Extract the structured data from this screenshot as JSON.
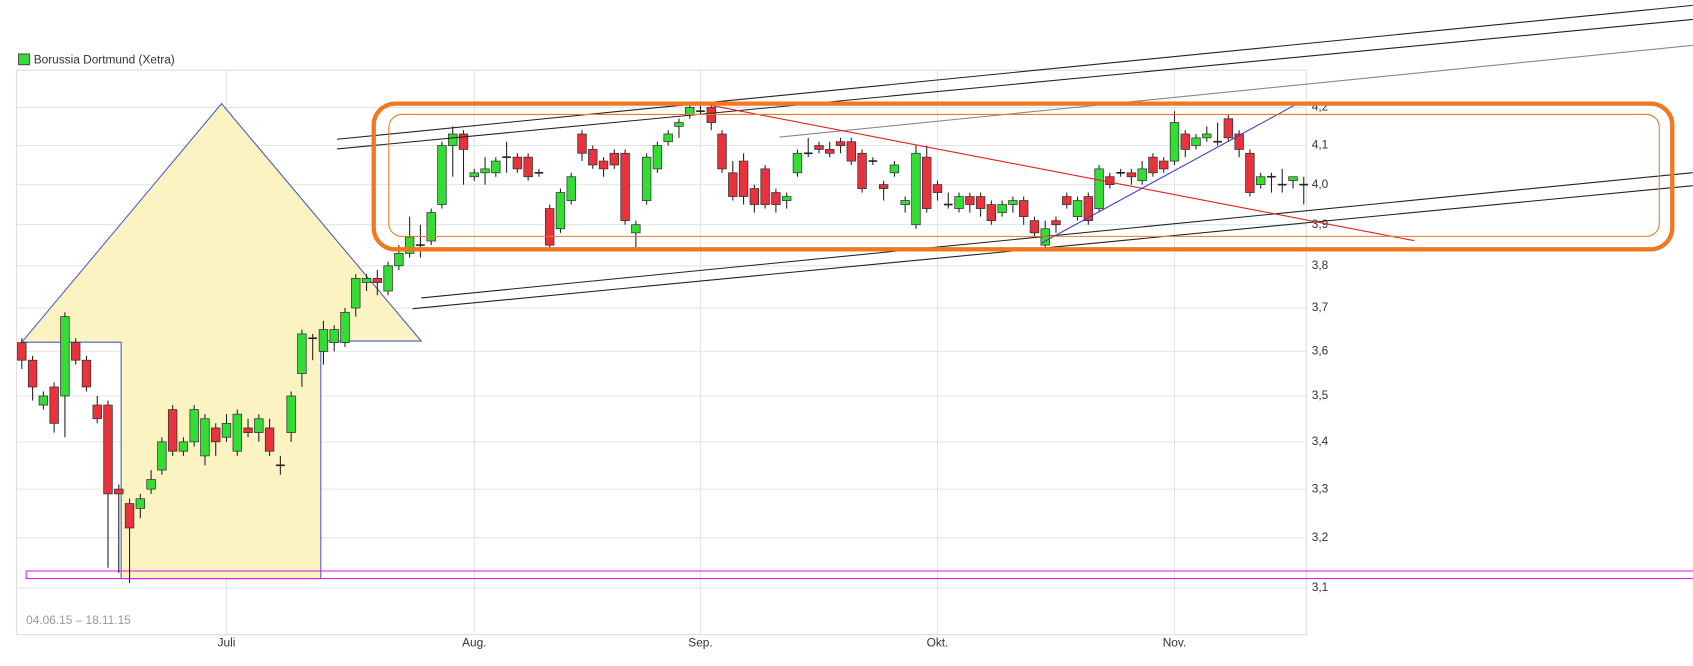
{
  "chart_data": {
    "type": "candlestick",
    "date_range": "04.06.15 – 18.11.15",
    "log_scale": true,
    "grid": true,
    "legend": "top-left",
    "categories": [
      null,
      null,
      null,
      null,
      null,
      null,
      null,
      null,
      null,
      null,
      null,
      null,
      null,
      null,
      null,
      null,
      null,
      null,
      null,
      "Juli",
      null,
      null,
      null,
      null,
      null,
      null,
      null,
      null,
      null,
      null,
      null,
      null,
      null,
      null,
      null,
      null,
      null,
      null,
      null,
      null,
      null,
      null,
      "Aug.",
      null,
      null,
      null,
      null,
      null,
      null,
      null,
      null,
      null,
      null,
      null,
      null,
      null,
      null,
      null,
      null,
      null,
      null,
      null,
      null,
      "Sep.",
      null,
      null,
      null,
      null,
      null,
      null,
      null,
      null,
      null,
      null,
      null,
      null,
      null,
      null,
      null,
      null,
      null,
      null,
      null,
      null,
      null,
      "Okt.",
      null,
      null,
      null,
      null,
      null,
      null,
      null,
      null,
      null,
      null,
      null,
      null,
      null,
      null,
      null,
      null,
      null,
      null,
      null,
      null,
      null,
      "Nov.",
      null,
      null,
      null,
      null,
      null,
      null,
      null,
      null,
      null,
      null,
      null,
      null
    ],
    "ylim": [
      3.01,
      4.3
    ],
    "yticks": [
      {
        "value": 3.1,
        "label": "3,1"
      },
      {
        "value": 3.2,
        "label": "3,2"
      },
      {
        "value": 3.3,
        "label": "3,3"
      },
      {
        "value": 3.4,
        "label": "3,4"
      },
      {
        "value": 3.5,
        "label": "3,5"
      },
      {
        "value": 3.6,
        "label": "3,6"
      },
      {
        "value": 3.7,
        "label": "3,7"
      },
      {
        "value": 3.8,
        "label": "3,8"
      },
      {
        "value": 3.9,
        "label": "3,9"
      },
      {
        "value": 4.0,
        "label": "4,0"
      },
      {
        "value": 4.1,
        "label": "4,1"
      },
      {
        "value": 4.2,
        "label": "4,2"
      }
    ],
    "series": [
      {
        "name": "Borussia Dortmund (Xetra)",
        "up_color": "#33dd33",
        "down_color": "#e8323c",
        "open": [
          3.62,
          3.58,
          3.48,
          3.52,
          3.5,
          3.62,
          3.58,
          3.48,
          3.48,
          3.3,
          3.27,
          3.26,
          3.3,
          3.34,
          3.47,
          3.38,
          3.4,
          3.37,
          3.43,
          3.41,
          3.38,
          3.43,
          3.42,
          3.43,
          3.35,
          3.42,
          3.55,
          3.63,
          3.6,
          3.62,
          3.62,
          3.7,
          3.76,
          3.77,
          3.74,
          3.8,
          3.83,
          3.85,
          3.86,
          3.95,
          4.1,
          4.13,
          4.02,
          4.03,
          4.03,
          4.07,
          4.07,
          4.07,
          4.03,
          3.94,
          3.89,
          3.96,
          4.13,
          4.09,
          4.06,
          4.08,
          4.08,
          3.88,
          3.96,
          4.04,
          4.11,
          4.15,
          4.18,
          4.19,
          4.2,
          4.13,
          4.03,
          4.06,
          3.99,
          4.04,
          3.98,
          3.96,
          4.03,
          4.08,
          4.1,
          4.09,
          4.11,
          4.11,
          4.08,
          4.06,
          4.0,
          4.03,
          3.95,
          3.9,
          4.07,
          4.0,
          3.95,
          3.94,
          3.97,
          3.97,
          3.95,
          3.93,
          3.95,
          3.96,
          3.91,
          3.85,
          3.91,
          3.97,
          3.92,
          3.97,
          3.94,
          4.02,
          4.03,
          4.03,
          4.01,
          4.07,
          4.06,
          4.06,
          4.13,
          4.1,
          4.12,
          4.11,
          4.17,
          4.13,
          4.08,
          4.0,
          4.02,
          4.0,
          4.01,
          4.0
        ],
        "high": [
          3.63,
          3.59,
          3.51,
          3.53,
          3.69,
          3.63,
          3.59,
          3.5,
          3.49,
          3.31,
          3.28,
          3.29,
          3.34,
          3.41,
          3.48,
          3.41,
          3.48,
          3.46,
          3.44,
          3.46,
          3.47,
          3.45,
          3.46,
          3.45,
          3.37,
          3.51,
          3.65,
          3.64,
          3.67,
          3.66,
          3.7,
          3.78,
          3.78,
          3.79,
          3.81,
          3.85,
          3.92,
          3.9,
          3.94,
          4.11,
          4.15,
          4.14,
          4.04,
          4.07,
          4.07,
          4.11,
          4.08,
          4.08,
          4.04,
          3.95,
          3.99,
          4.03,
          4.14,
          4.1,
          4.07,
          4.09,
          4.09,
          3.91,
          4.08,
          4.11,
          4.14,
          4.17,
          4.21,
          4.21,
          4.21,
          4.14,
          4.06,
          4.08,
          4.0,
          4.05,
          3.99,
          3.98,
          4.09,
          4.12,
          4.11,
          4.11,
          4.12,
          4.12,
          4.09,
          4.07,
          4.01,
          4.06,
          3.97,
          4.1,
          4.1,
          4.01,
          3.98,
          3.98,
          3.98,
          3.98,
          3.96,
          3.96,
          3.97,
          3.97,
          3.92,
          3.91,
          3.92,
          3.98,
          3.97,
          3.98,
          4.05,
          4.03,
          4.04,
          4.04,
          4.06,
          4.08,
          4.07,
          4.19,
          4.14,
          4.13,
          4.15,
          4.16,
          4.18,
          4.14,
          4.09,
          4.03,
          4.03,
          4.04,
          4.02,
          4.02
        ],
        "low": [
          3.56,
          3.49,
          3.47,
          3.42,
          3.41,
          3.57,
          3.51,
          3.44,
          3.14,
          3.13,
          3.11,
          3.24,
          3.29,
          3.33,
          3.37,
          3.37,
          3.39,
          3.35,
          3.37,
          3.4,
          3.37,
          3.41,
          3.4,
          3.37,
          3.33,
          3.4,
          3.52,
          3.58,
          3.57,
          3.6,
          3.61,
          3.68,
          3.74,
          3.73,
          3.73,
          3.79,
          3.82,
          3.82,
          3.85,
          3.94,
          4.02,
          4.0,
          4.01,
          4.0,
          4.02,
          4.03,
          4.03,
          4.01,
          4.02,
          3.84,
          3.88,
          3.95,
          4.06,
          4.04,
          4.02,
          4.04,
          3.9,
          3.84,
          3.95,
          4.03,
          4.1,
          4.12,
          4.17,
          4.18,
          4.14,
          4.03,
          3.96,
          3.95,
          3.93,
          3.94,
          3.93,
          3.94,
          4.02,
          4.07,
          4.08,
          4.07,
          4.08,
          4.05,
          3.98,
          4.05,
          3.96,
          4.02,
          3.93,
          3.89,
          3.93,
          3.96,
          3.94,
          3.93,
          3.93,
          3.92,
          3.9,
          3.92,
          3.93,
          3.9,
          3.87,
          3.84,
          3.88,
          3.94,
          3.91,
          3.9,
          3.93,
          3.99,
          4.02,
          4.0,
          4.0,
          4.02,
          4.03,
          4.05,
          4.07,
          4.09,
          4.11,
          4.1,
          4.11,
          4.07,
          3.97,
          3.99,
          3.98,
          3.98,
          3.99,
          3.95
        ],
        "close": [
          3.58,
          3.52,
          3.5,
          3.44,
          3.68,
          3.58,
          3.52,
          3.45,
          3.29,
          3.29,
          3.22,
          3.28,
          3.32,
          3.4,
          3.38,
          3.4,
          3.47,
          3.45,
          3.4,
          3.44,
          3.46,
          3.42,
          3.45,
          3.38,
          3.35,
          3.5,
          3.64,
          3.63,
          3.65,
          3.65,
          3.69,
          3.77,
          3.77,
          3.76,
          3.8,
          3.83,
          3.87,
          3.85,
          3.93,
          4.1,
          4.13,
          4.09,
          4.03,
          4.04,
          4.06,
          4.07,
          4.04,
          4.02,
          4.03,
          3.85,
          3.98,
          4.02,
          4.08,
          4.05,
          4.04,
          4.05,
          3.91,
          3.9,
          4.07,
          4.1,
          4.13,
          4.16,
          4.2,
          4.19,
          4.16,
          4.04,
          3.97,
          3.97,
          3.95,
          3.95,
          3.95,
          3.97,
          4.08,
          4.08,
          4.09,
          4.08,
          4.1,
          4.06,
          3.99,
          4.06,
          3.99,
          4.05,
          3.96,
          4.08,
          3.94,
          3.98,
          3.95,
          3.97,
          3.95,
          3.94,
          3.91,
          3.95,
          3.96,
          3.92,
          3.88,
          3.89,
          3.9,
          3.95,
          3.96,
          3.91,
          4.04,
          4.0,
          4.03,
          4.02,
          4.04,
          4.03,
          4.04,
          4.16,
          4.09,
          4.12,
          4.13,
          4.11,
          4.12,
          4.09,
          3.98,
          4.02,
          4.02,
          4.0,
          4.02,
          4.0
        ]
      }
    ]
  }
}
